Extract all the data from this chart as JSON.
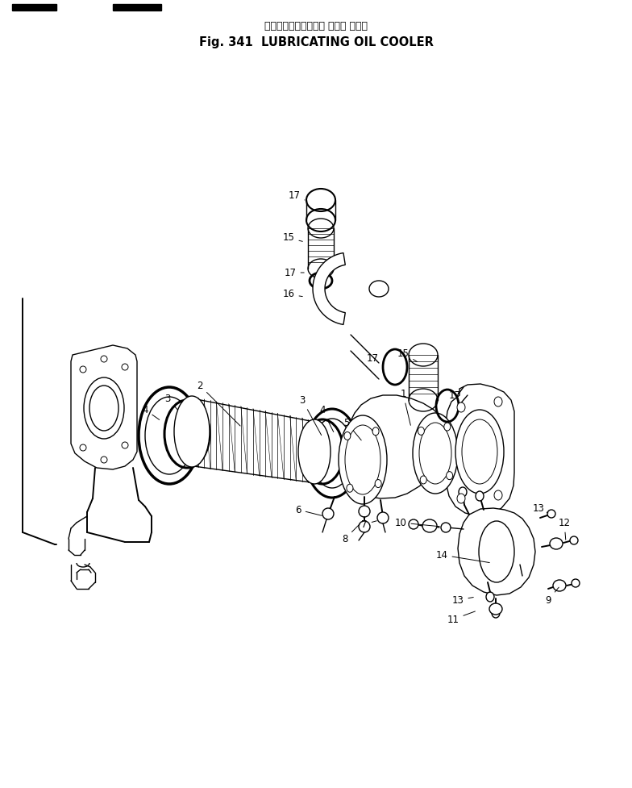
{
  "title_japanese": "ルーブリケーティング オイル クーラ",
  "title_english": "Fig. 341  LUBRICATING OIL COOLER",
  "background_color": "#ffffff",
  "figsize": [
    7.84,
    9.77
  ],
  "dpi": 100
}
